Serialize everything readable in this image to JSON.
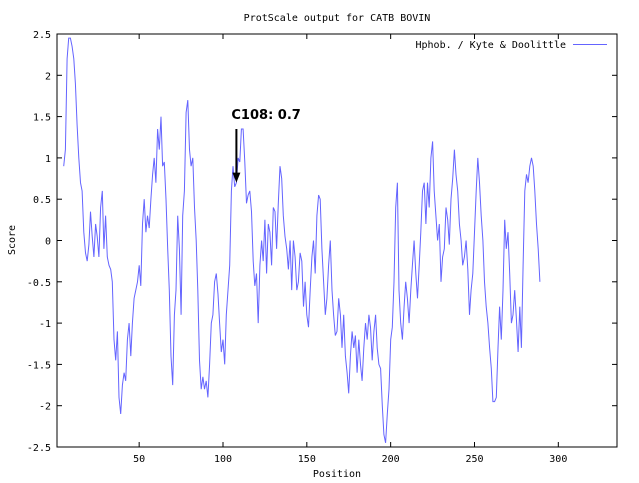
{
  "chart_data": {
    "type": "line",
    "title": "ProtScale output for CATB BOVIN",
    "xlabel": "Position",
    "ylabel": "Score",
    "xlim": [
      1,
      335
    ],
    "ylim": [
      -2.5,
      2.5
    ],
    "x_ticks": [
      50,
      100,
      150,
      200,
      250,
      300
    ],
    "x_tick_labels": [
      "50",
      "100",
      "150",
      "200",
      "250",
      "300"
    ],
    "y_ticks": [
      -2.5,
      -2,
      -1.5,
      -1,
      -0.5,
      0,
      0.5,
      1,
      1.5,
      2,
      2.5
    ],
    "y_tick_labels": [
      "-2.5",
      "-2",
      "-1.5",
      "-1",
      "-0.5",
      "0",
      "0.5",
      "1",
      "1.5",
      "2",
      "2.5"
    ],
    "grid": false,
    "legend_position": "top-right",
    "series": [
      {
        "name": "Hphob. / Kyte & Doolittle",
        "color": "#6464ff",
        "points": [
          [
            5,
            0.9
          ],
          [
            6,
            1.1
          ],
          [
            7,
            2.2
          ],
          [
            8,
            2.45
          ],
          [
            9,
            2.45
          ],
          [
            10,
            2.35
          ],
          [
            11,
            2.2
          ],
          [
            12,
            1.9
          ],
          [
            13,
            1.4
          ],
          [
            14,
            1.0
          ],
          [
            15,
            0.7
          ],
          [
            16,
            0.6
          ],
          [
            17,
            0.1
          ],
          [
            18,
            -0.15
          ],
          [
            19,
            -0.25
          ],
          [
            20,
            -0.05
          ],
          [
            21,
            0.35
          ],
          [
            22,
            0.05
          ],
          [
            23,
            -0.2
          ],
          [
            24,
            0.2
          ],
          [
            25,
            0.05
          ],
          [
            26,
            -0.2
          ],
          [
            27,
            0.4
          ],
          [
            28,
            0.6
          ],
          [
            29,
            -0.1
          ],
          [
            30,
            0.3
          ],
          [
            31,
            -0.2
          ],
          [
            32,
            -0.3
          ],
          [
            33,
            -0.35
          ],
          [
            34,
            -0.5
          ],
          [
            35,
            -1.2
          ],
          [
            36,
            -1.45
          ],
          [
            37,
            -1.1
          ],
          [
            38,
            -1.9
          ],
          [
            39,
            -2.1
          ],
          [
            40,
            -1.75
          ],
          [
            41,
            -1.6
          ],
          [
            42,
            -1.7
          ],
          [
            43,
            -1.2
          ],
          [
            44,
            -1.0
          ],
          [
            45,
            -1.4
          ],
          [
            46,
            -1.0
          ],
          [
            47,
            -0.7
          ],
          [
            48,
            -0.6
          ],
          [
            49,
            -0.5
          ],
          [
            50,
            -0.3
          ],
          [
            51,
            -0.55
          ],
          [
            52,
            0.2
          ],
          [
            53,
            0.5
          ],
          [
            54,
            0.1
          ],
          [
            55,
            0.3
          ],
          [
            56,
            0.15
          ],
          [
            57,
            0.5
          ],
          [
            58,
            0.8
          ],
          [
            59,
            1.0
          ],
          [
            60,
            0.7
          ],
          [
            61,
            1.35
          ],
          [
            62,
            1.1
          ],
          [
            63,
            1.5
          ],
          [
            64,
            0.9
          ],
          [
            65,
            0.95
          ],
          [
            66,
            0.5
          ],
          [
            67,
            -0.1
          ],
          [
            68,
            -0.6
          ],
          [
            69,
            -1.4
          ],
          [
            70,
            -1.75
          ],
          [
            71,
            -0.9
          ],
          [
            72,
            -0.6
          ],
          [
            73,
            0.3
          ],
          [
            74,
            -0.1
          ],
          [
            75,
            -0.9
          ],
          [
            76,
            0.3
          ],
          [
            77,
            0.6
          ],
          [
            78,
            1.55
          ],
          [
            79,
            1.7
          ],
          [
            80,
            1.1
          ],
          [
            81,
            0.9
          ],
          [
            82,
            1.0
          ],
          [
            83,
            0.4
          ],
          [
            84,
            0.0
          ],
          [
            85,
            -0.6
          ],
          [
            86,
            -1.45
          ],
          [
            87,
            -1.8
          ],
          [
            88,
            -1.65
          ],
          [
            89,
            -1.8
          ],
          [
            90,
            -1.7
          ],
          [
            91,
            -1.9
          ],
          [
            92,
            -1.5
          ],
          [
            93,
            -1.0
          ],
          [
            94,
            -0.9
          ],
          [
            95,
            -0.5
          ],
          [
            96,
            -0.4
          ],
          [
            97,
            -0.65
          ],
          [
            98,
            -1.0
          ],
          [
            99,
            -1.35
          ],
          [
            100,
            -1.2
          ],
          [
            101,
            -1.5
          ],
          [
            102,
            -0.9
          ],
          [
            103,
            -0.6
          ],
          [
            104,
            -0.3
          ],
          [
            105,
            0.6
          ],
          [
            106,
            0.9
          ],
          [
            107,
            0.65
          ],
          [
            108,
            0.7
          ],
          [
            109,
            1.0
          ],
          [
            110,
            0.95
          ],
          [
            111,
            1.35
          ],
          [
            112,
            1.35
          ],
          [
            113,
            0.95
          ],
          [
            114,
            0.45
          ],
          [
            115,
            0.55
          ],
          [
            116,
            0.6
          ],
          [
            117,
            0.35
          ],
          [
            118,
            -0.25
          ],
          [
            119,
            -0.55
          ],
          [
            120,
            -0.4
          ],
          [
            121,
            -1.0
          ],
          [
            122,
            -0.3
          ],
          [
            123,
            0.0
          ],
          [
            124,
            -0.25
          ],
          [
            125,
            0.25
          ],
          [
            126,
            -0.4
          ],
          [
            127,
            0.2
          ],
          [
            128,
            0.1
          ],
          [
            129,
            -0.3
          ],
          [
            130,
            0.4
          ],
          [
            131,
            0.35
          ],
          [
            132,
            -0.1
          ],
          [
            133,
            0.45
          ],
          [
            134,
            0.9
          ],
          [
            135,
            0.75
          ],
          [
            136,
            0.3
          ],
          [
            137,
            0.05
          ],
          [
            138,
            -0.1
          ],
          [
            139,
            -0.35
          ],
          [
            140,
            0.0
          ],
          [
            141,
            -0.6
          ],
          [
            142,
            0.0
          ],
          [
            143,
            -0.2
          ],
          [
            144,
            -0.6
          ],
          [
            145,
            -0.5
          ],
          [
            146,
            -0.15
          ],
          [
            147,
            -0.25
          ],
          [
            148,
            -0.8
          ],
          [
            149,
            -0.5
          ],
          [
            150,
            -0.9
          ],
          [
            151,
            -1.05
          ],
          [
            152,
            -0.6
          ],
          [
            153,
            -0.2
          ],
          [
            154,
            0.0
          ],
          [
            155,
            -0.4
          ],
          [
            156,
            0.3
          ],
          [
            157,
            0.55
          ],
          [
            158,
            0.5
          ],
          [
            159,
            -0.1
          ],
          [
            160,
            -0.5
          ],
          [
            161,
            -0.9
          ],
          [
            162,
            -0.7
          ],
          [
            163,
            -0.3
          ],
          [
            164,
            0.0
          ],
          [
            165,
            -0.6
          ],
          [
            166,
            -0.9
          ],
          [
            167,
            -1.15
          ],
          [
            168,
            -1.1
          ],
          [
            169,
            -0.7
          ],
          [
            170,
            -0.9
          ],
          [
            171,
            -1.3
          ],
          [
            172,
            -0.9
          ],
          [
            173,
            -1.4
          ],
          [
            174,
            -1.6
          ],
          [
            175,
            -1.85
          ],
          [
            176,
            -1.4
          ],
          [
            177,
            -1.1
          ],
          [
            178,
            -1.3
          ],
          [
            179,
            -1.15
          ],
          [
            180,
            -1.6
          ],
          [
            181,
            -1.2
          ],
          [
            182,
            -1.5
          ],
          [
            183,
            -1.7
          ],
          [
            184,
            -1.3
          ],
          [
            185,
            -1.0
          ],
          [
            186,
            -1.2
          ],
          [
            187,
            -0.9
          ],
          [
            188,
            -1.05
          ],
          [
            189,
            -1.45
          ],
          [
            190,
            -1.1
          ],
          [
            191,
            -0.9
          ],
          [
            192,
            -1.3
          ],
          [
            193,
            -1.5
          ],
          [
            194,
            -1.55
          ],
          [
            195,
            -2.0
          ],
          [
            196,
            -2.35
          ],
          [
            197,
            -2.45
          ],
          [
            198,
            -2.1
          ],
          [
            199,
            -1.8
          ],
          [
            200,
            -1.2
          ],
          [
            201,
            -1.05
          ],
          [
            202,
            -0.5
          ],
          [
            203,
            0.4
          ],
          [
            204,
            0.7
          ],
          [
            205,
            -0.6
          ],
          [
            206,
            -1.0
          ],
          [
            207,
            -1.2
          ],
          [
            208,
            -0.8
          ],
          [
            209,
            -0.5
          ],
          [
            210,
            -0.7
          ],
          [
            211,
            -1.0
          ],
          [
            212,
            -0.6
          ],
          [
            213,
            -0.3
          ],
          [
            214,
            0.0
          ],
          [
            215,
            -0.4
          ],
          [
            216,
            -0.7
          ],
          [
            217,
            -0.3
          ],
          [
            218,
            0.1
          ],
          [
            219,
            0.6
          ],
          [
            220,
            0.7
          ],
          [
            221,
            0.2
          ],
          [
            222,
            0.7
          ],
          [
            223,
            0.4
          ],
          [
            224,
            1.0
          ],
          [
            225,
            1.2
          ],
          [
            226,
            0.6
          ],
          [
            227,
            0.3
          ],
          [
            228,
            0.0
          ],
          [
            229,
            0.2
          ],
          [
            230,
            -0.5
          ],
          [
            231,
            -0.2
          ],
          [
            232,
            -0.1
          ],
          [
            233,
            0.4
          ],
          [
            234,
            0.25
          ],
          [
            235,
            -0.05
          ],
          [
            236,
            0.5
          ],
          [
            237,
            0.75
          ],
          [
            238,
            1.1
          ],
          [
            239,
            0.8
          ],
          [
            240,
            0.6
          ],
          [
            241,
            0.2
          ],
          [
            242,
            0.0
          ],
          [
            243,
            -0.3
          ],
          [
            244,
            -0.2
          ],
          [
            245,
            0.0
          ],
          [
            246,
            -0.35
          ],
          [
            247,
            -0.9
          ],
          [
            248,
            -0.6
          ],
          [
            249,
            -0.4
          ],
          [
            250,
            0.1
          ],
          [
            251,
            0.6
          ],
          [
            252,
            1.0
          ],
          [
            253,
            0.7
          ],
          [
            254,
            0.3
          ],
          [
            255,
            0.0
          ],
          [
            256,
            -0.5
          ],
          [
            257,
            -0.8
          ],
          [
            258,
            -1.0
          ],
          [
            259,
            -1.3
          ],
          [
            260,
            -1.55
          ],
          [
            261,
            -1.95
          ],
          [
            262,
            -1.95
          ],
          [
            263,
            -1.9
          ],
          [
            264,
            -1.3
          ],
          [
            265,
            -0.8
          ],
          [
            266,
            -1.2
          ],
          [
            267,
            -0.6
          ],
          [
            268,
            0.25
          ],
          [
            269,
            -0.1
          ],
          [
            270,
            0.1
          ],
          [
            271,
            -0.4
          ],
          [
            272,
            -1.0
          ],
          [
            273,
            -0.9
          ],
          [
            274,
            -0.6
          ],
          [
            275,
            -0.95
          ],
          [
            276,
            -1.35
          ],
          [
            277,
            -0.8
          ],
          [
            278,
            -1.3
          ],
          [
            279,
            -0.3
          ],
          [
            280,
            0.6
          ],
          [
            281,
            0.8
          ],
          [
            282,
            0.7
          ],
          [
            283,
            0.9
          ],
          [
            284,
            1.0
          ],
          [
            285,
            0.9
          ],
          [
            286,
            0.6
          ],
          [
            287,
            0.2
          ],
          [
            288,
            -0.1
          ],
          [
            289,
            -0.5
          ]
        ]
      }
    ],
    "annotation": {
      "text": "C108: 0.7",
      "x": 108,
      "y": 0.7,
      "arrow_from_y": 1.35
    }
  }
}
